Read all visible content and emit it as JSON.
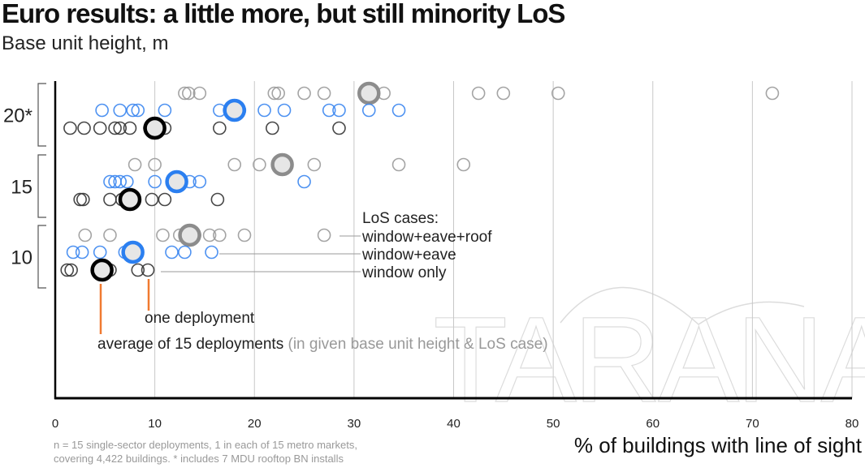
{
  "title": "Euro results:  a little more, but still minority LoS",
  "subtitle": "Base unit height, m",
  "footnote": {
    "line1": "n = 15 single-sector deployments, 1 in each of 15 metro markets,",
    "line2": "covering 4,422 buildings.  * includes 7 MDU rooftop BN installs"
  },
  "watermark": "TARANA",
  "legend": {
    "heading": "LoS cases:",
    "items": [
      "window+eave+roof",
      "window+eave",
      "window only"
    ],
    "one_deployment": "one deployment",
    "average": "average of 15 deployments",
    "average_note": "(in given base unit height & LoS case)"
  },
  "colors": {
    "window_eave_roof": "#9a9a9a",
    "window_eave": "#3b86f0",
    "window_only": "#333333",
    "avg_roof": "#8c8c8c",
    "avg_eave": "#2b7ff0",
    "avg_window": "#000000",
    "avg_fill": "#e6e6e6",
    "annotation": "#f07a30",
    "grid": "#c8c8c8"
  },
  "chart_data": {
    "type": "scatter",
    "title": "Euro results:  a little more, but still minority LoS",
    "xlabel": "% of buildings with line of sight",
    "ylabel": "Base unit height, m",
    "xlim": [
      0,
      80
    ],
    "xticks": [
      0,
      10,
      20,
      30,
      40,
      50,
      60,
      70,
      80
    ],
    "grid": "vertical",
    "groups": [
      {
        "label": "20*",
        "series": [
          {
            "name": "window+eave+roof",
            "values": [
              13,
              13.4,
              14.5,
              22,
              22.4,
              25,
              27,
              31.2,
              33,
              42.5,
              45,
              50.5,
              72
            ],
            "average": 31.5
          },
          {
            "name": "window+eave",
            "values": [
              4.7,
              6.5,
              7.8,
              8.3,
              11,
              16.5,
              17.5,
              18.5,
              21,
              23,
              27.5,
              28.5,
              31.5,
              34.5
            ],
            "average": 18
          },
          {
            "name": "window only",
            "values": [
              1.5,
              2.9,
              4.5,
              6,
              6.5,
              7.5,
              9.5,
              10,
              11,
              16.5,
              21.8,
              28.5
            ],
            "average": 10
          }
        ]
      },
      {
        "label": "15",
        "series": [
          {
            "name": "window+eave+roof",
            "values": [
              8,
              10,
              18,
              20.5,
              22.7,
              26,
              34.5,
              41
            ],
            "average": 22.8
          },
          {
            "name": "window+eave",
            "values": [
              5.5,
              6,
              6.5,
              7.2,
              10,
              12,
              13.5,
              14.5,
              25
            ],
            "average": 12.2
          },
          {
            "name": "window only",
            "values": [
              2.5,
              2.8,
              5.5,
              6.7,
              7.2,
              9.7,
              11,
              16.3
            ],
            "average": 7.5
          }
        ]
      },
      {
        "label": "10",
        "series": [
          {
            "name": "window+eave+roof",
            "values": [
              3,
              5.5,
              10.8,
              12.5,
              13.4,
              14,
              15.5,
              16.5,
              19,
              27
            ],
            "average": 13.5
          },
          {
            "name": "window+eave",
            "values": [
              1.8,
              2.7,
              4.5,
              7,
              7.7,
              11.7,
              13,
              15.7
            ],
            "average": 7.8
          },
          {
            "name": "window only",
            "values": [
              1.2,
              1.6,
              5,
              5.5,
              8.3,
              9.3
            ],
            "average": 4.7
          }
        ]
      }
    ]
  }
}
